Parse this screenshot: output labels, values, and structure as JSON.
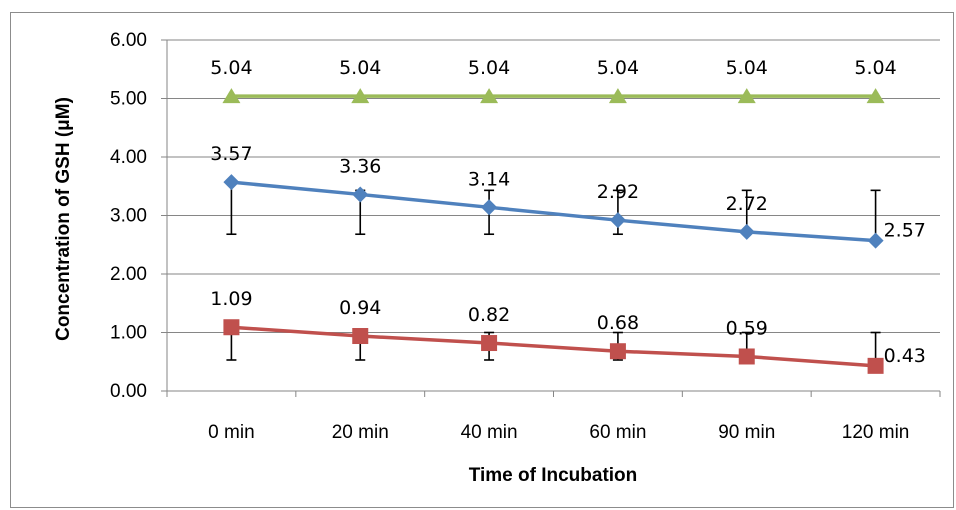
{
  "chart_data": {
    "type": "line",
    "title": "",
    "xlabel": "Time of Incubation",
    "ylabel": "Concentration of GSH (μM)",
    "categories": [
      "0 min",
      "20 min",
      "40 min",
      "60 min",
      "90 min",
      "120 min"
    ],
    "ylim": [
      0,
      6
    ],
    "yticks": [
      "0.00",
      "1.00",
      "2.00",
      "3.00",
      "4.00",
      "5.00",
      "6.00"
    ],
    "grid": "horizontal",
    "legend": "none",
    "series": [
      {
        "color": "#9bbb59",
        "marker": "triangle",
        "values": [
          5.04,
          5.04,
          5.04,
          5.04,
          5.04,
          5.04
        ],
        "labels": [
          "5.04",
          "5.04",
          "5.04",
          "5.04",
          "5.04",
          "5.04"
        ],
        "error_low": [
          5.04,
          5.04,
          5.04,
          5.04,
          5.04,
          5.04
        ],
        "error_high": [
          5.04,
          5.04,
          5.04,
          5.04,
          5.04,
          5.04
        ]
      },
      {
        "color": "#4f81bd",
        "marker": "diamond",
        "values": [
          3.57,
          3.36,
          3.14,
          2.92,
          2.72,
          2.57
        ],
        "labels": [
          "3.57",
          "3.36",
          "3.14",
          "2.92",
          "2.72",
          "2.57"
        ],
        "error_low": [
          2.68,
          2.68,
          2.68,
          2.68,
          2.72,
          2.57
        ],
        "error_high": [
          3.57,
          3.43,
          3.43,
          3.43,
          3.43,
          3.43
        ]
      },
      {
        "color": "#c0504d",
        "marker": "square",
        "values": [
          1.09,
          0.94,
          0.82,
          0.68,
          0.59,
          0.43
        ],
        "labels": [
          "1.09",
          "0.94",
          "0.82",
          "0.68",
          "0.59",
          "0.43"
        ],
        "error_low": [
          0.53,
          0.53,
          0.53,
          0.53,
          0.59,
          0.43
        ],
        "error_high": [
          1.09,
          1.0,
          1.0,
          1.0,
          1.0,
          1.0
        ]
      }
    ]
  }
}
